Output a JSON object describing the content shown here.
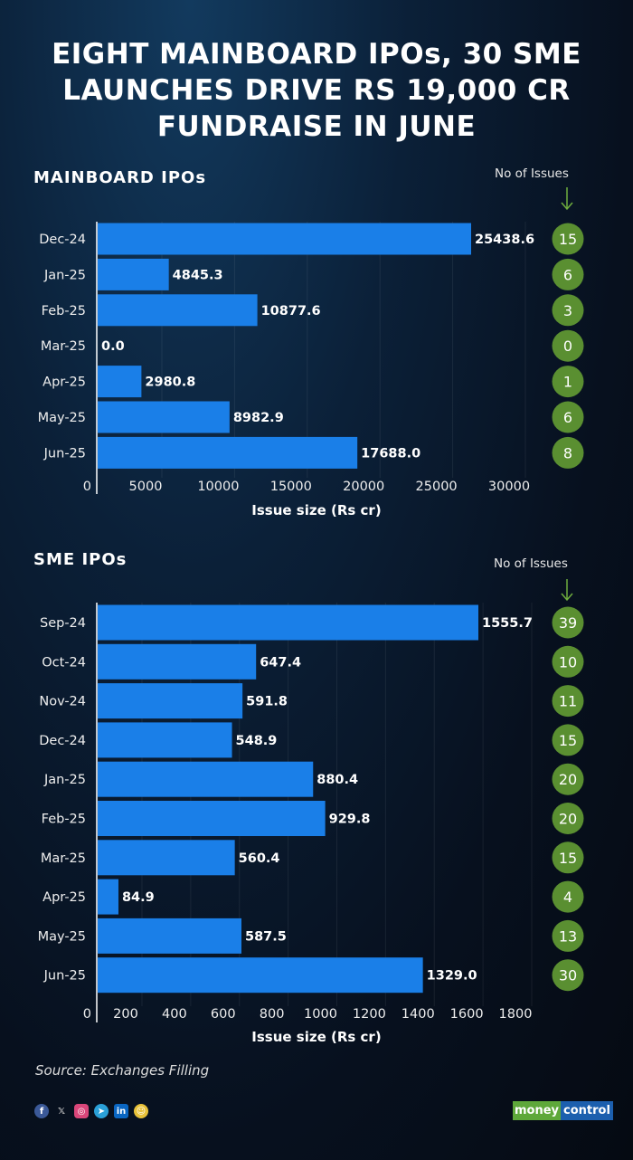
{
  "title_lines": [
    "EIGHT MAINBOARD IPOs, 30 SME",
    "LAUNCHES DRIVE RS 19,000 CR",
    "FUNDRAISE IN JUNE"
  ],
  "colors": {
    "bar": "#1a7fe8",
    "issue_circle": "#5a8f31",
    "arrow": "#6fae3e"
  },
  "chart_data": [
    {
      "type": "bar",
      "orientation": "horizontal",
      "title": "MAINBOARD IPOs",
      "categories": [
        "Dec-24",
        "Jan-25",
        "Feb-25",
        "Mar-25",
        "Apr-25",
        "May-25",
        "Jun-25"
      ],
      "values": [
        25438.6,
        4845.3,
        10877.6,
        0.0,
        2980.8,
        8982.9,
        17688.0
      ],
      "value_labels": [
        "25438.6",
        "4845.3",
        "10877.6",
        "0.0",
        "2980.8",
        "8982.9",
        "17688.0"
      ],
      "issues_label": "No of Issues",
      "issues": [
        "15",
        "6",
        "3",
        "0",
        "1",
        "6",
        "8"
      ],
      "xlabel": "Issue size (Rs cr)",
      "xticks": [
        "0",
        "5000",
        "10000",
        "15000",
        "20000",
        "25000",
        "30000"
      ],
      "xlim": [
        0,
        30000
      ],
      "grid": true
    },
    {
      "type": "bar",
      "orientation": "horizontal",
      "title": "SME IPOs",
      "categories": [
        "Sep-24",
        "Oct-24",
        "Nov-24",
        "Dec-24",
        "Jan-25",
        "Feb-25",
        "Mar-25",
        "Apr-25",
        "May-25",
        "Jun-25"
      ],
      "values": [
        1555.7,
        647.4,
        591.8,
        548.9,
        880.4,
        929.8,
        560.4,
        84.9,
        587.5,
        1329.0
      ],
      "value_labels": [
        "1555.7",
        "647.4",
        "591.8",
        "548.9",
        "880.4",
        "929.8",
        "560.4",
        "84.9",
        "587.5",
        "1329.0"
      ],
      "issues_label": "No of Issues",
      "issues": [
        "39",
        "10",
        "11",
        "15",
        "20",
        "20",
        "15",
        "4",
        "13",
        "30"
      ],
      "xlabel": "Issue size (Rs cr)",
      "xticks": [
        "0",
        "200",
        "400",
        "600",
        "800",
        "1000",
        "1200",
        "1400",
        "1600",
        "1800"
      ],
      "xlim": [
        0,
        1800
      ],
      "grid": true
    }
  ],
  "footer": {
    "source": "Source: Exchanges Filling",
    "social_icons": [
      "facebook-icon",
      "x-icon",
      "instagram-icon",
      "telegram-icon",
      "linkedin-icon",
      "snapchat-icon"
    ],
    "logo_text": [
      "money",
      "control"
    ]
  }
}
